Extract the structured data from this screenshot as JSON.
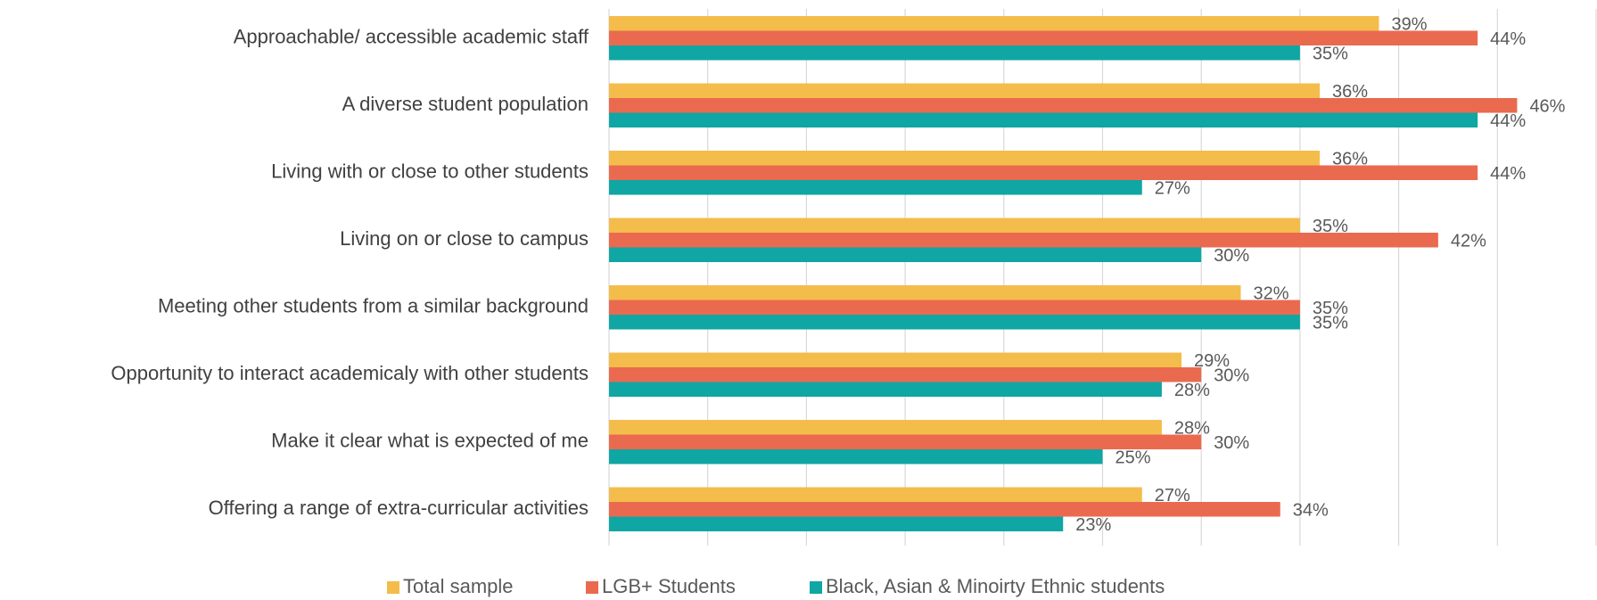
{
  "chart_data": {
    "type": "barh",
    "categories": [
      "Approachable/ accessible academic staff",
      "A diverse student population",
      "Living with or close to other students",
      "Living on or close to campus",
      "Meeting other students from a similar background",
      "Opportunity to interact academicaly with other students",
      "Make it clear what is expected of me",
      "Offering a range of extra-curricular activities"
    ],
    "series": [
      {
        "name": "Total sample",
        "color": "#f4bc4a",
        "values": [
          39,
          36,
          36,
          35,
          32,
          29,
          28,
          27
        ],
        "value_labels": [
          "39%",
          "36%",
          "36%",
          "35%",
          "32%",
          "29%",
          "28%",
          "27%"
        ]
      },
      {
        "name": "LGB+ Students",
        "color": "#ea6a4f",
        "values": [
          44,
          46,
          44,
          42,
          35,
          30,
          30,
          34
        ],
        "value_labels": [
          "44%",
          "46%",
          "44%",
          "42%",
          "35%",
          "30%",
          "30%",
          "34%"
        ]
      },
      {
        "name": "Black, Asian & Minoirty Ethnic students",
        "color": "#0fa6a4",
        "values": [
          35,
          44,
          27,
          30,
          35,
          28,
          25,
          23
        ],
        "value_labels": [
          "35%",
          "44%",
          "27%",
          "30%",
          "35%",
          "28%",
          "25%",
          "23%"
        ]
      }
    ],
    "xlim": [
      0,
      50
    ],
    "xticks": [
      0,
      5,
      10,
      15,
      20,
      25,
      30,
      35,
      40,
      45,
      50
    ],
    "grid": true,
    "legend": "bottom"
  }
}
